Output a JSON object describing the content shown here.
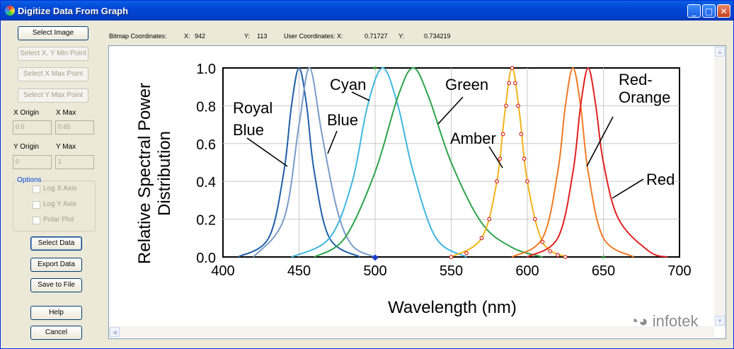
{
  "window": {
    "title": "Digitize Data From Graph",
    "min_glyph": "_",
    "max_glyph": "□",
    "close_glyph": "✕"
  },
  "left_panel": {
    "select_image": "Select Image",
    "select_xy_min": "Select X, Y Min Point",
    "select_x_max": "Select X Max Point",
    "select_y_max": "Select Y Max Point",
    "x_origin_label": "X Origin",
    "x_max_label": "X Max",
    "x_origin_value": "0.5",
    "x_max_value": "0.65",
    "y_origin_label": "Y Origin",
    "y_max_label": "Y Max",
    "y_origin_value": "0",
    "y_max_value": "1",
    "options_title": "Options",
    "log_x": "Log X Axis",
    "log_y": "Log Y Axis",
    "polar": "Polar Plot",
    "select_data": "Select Data",
    "export_data": "Export Data",
    "save_to_file": "Save to File",
    "help": "Help",
    "cancel": "Cancel"
  },
  "coords": {
    "bitmap_label": "Bitmap Coordinates:",
    "x_label": "X:",
    "x_value": "942",
    "y_label": "Y:",
    "y_value": "113",
    "user_label": "User Coordinates: X:",
    "ux_value": "0.71727",
    "uy_label": "Y:",
    "uy_value": "0.734219"
  },
  "watermark": "infotek",
  "chart_data": {
    "type": "line",
    "ylabel": "Relative Spectral Power Distribution",
    "ylabel_lines": [
      "Relative Spectral Power",
      "Distribution"
    ],
    "xlabel": "Wavelength (nm)",
    "xlim": [
      400,
      700
    ],
    "ylim": [
      0,
      1
    ],
    "x_ticks": [
      "400",
      "450",
      "500",
      "550",
      "600",
      "650",
      "700"
    ],
    "y_ticks": [
      "0.0",
      "0.2",
      "0.4",
      "0.6",
      "0.8",
      "1.0"
    ],
    "grid": true,
    "series": [
      {
        "name": "Royal Blue",
        "label_lines": [
          "Royal",
          "Blue"
        ],
        "peak": 450,
        "color": "#1f5ea8",
        "x": [
          410,
          430,
          440,
          445,
          450,
          455,
          460,
          470,
          490
        ],
        "y": [
          0.0,
          0.1,
          0.45,
          0.8,
          1.0,
          0.8,
          0.45,
          0.1,
          0.0
        ]
      },
      {
        "name": "Blue",
        "label_lines": [
          "Blue"
        ],
        "peak": 457,
        "color": "#7a9cc8",
        "x": [
          420,
          440,
          450,
          457,
          465,
          475,
          485,
          500
        ],
        "y": [
          0.0,
          0.2,
          0.7,
          1.0,
          0.65,
          0.25,
          0.06,
          0.0
        ]
      },
      {
        "name": "Cyan",
        "label_lines": [
          "Cyan"
        ],
        "peak": 505,
        "color": "#3fb6e0",
        "x": [
          445,
          470,
          485,
          495,
          505,
          515,
          525,
          540,
          560
        ],
        "y": [
          0.0,
          0.1,
          0.4,
          0.8,
          1.0,
          0.8,
          0.45,
          0.1,
          0.0
        ]
      },
      {
        "name": "Green",
        "label_lines": [
          "Green"
        ],
        "peak": 525,
        "color": "#2ca34a",
        "x": [
          460,
          480,
          500,
          515,
          525,
          535,
          550,
          570,
          590,
          610
        ],
        "y": [
          0.0,
          0.1,
          0.45,
          0.85,
          1.0,
          0.85,
          0.5,
          0.18,
          0.05,
          0.0
        ]
      },
      {
        "name": "Amber",
        "label_lines": [
          "Amber"
        ],
        "peak": 590,
        "color": "#f2b41a",
        "x": [
          550,
          570,
          580,
          585,
          590,
          595,
          600,
          610,
          625
        ],
        "y": [
          0.0,
          0.1,
          0.4,
          0.75,
          1.0,
          0.75,
          0.4,
          0.08,
          0.0
        ]
      },
      {
        "name": "Red-Orange",
        "label_lines": [
          "Red-",
          "Orange"
        ],
        "peak": 630,
        "color": "#f07a24",
        "x": [
          590,
          610,
          620,
          625,
          630,
          635,
          640,
          650,
          670
        ],
        "y": [
          0.0,
          0.1,
          0.45,
          0.8,
          1.0,
          0.8,
          0.45,
          0.1,
          0.0
        ]
      },
      {
        "name": "Red",
        "label_lines": [
          "Red"
        ],
        "peak": 640,
        "color": "#e02020",
        "x": [
          600,
          620,
          630,
          635,
          640,
          645,
          650,
          660,
          680,
          692
        ],
        "y": [
          0.0,
          0.1,
          0.45,
          0.8,
          1.0,
          0.8,
          0.5,
          0.2,
          0.03,
          0.0
        ]
      }
    ],
    "digitized_points": {
      "x": [
        550,
        560,
        570,
        575,
        580,
        582,
        584,
        586,
        588,
        590,
        592,
        594,
        596,
        598,
        600,
        605,
        610,
        615,
        620,
        625
      ],
      "y": [
        0.0,
        0.02,
        0.1,
        0.2,
        0.4,
        0.52,
        0.65,
        0.8,
        0.92,
        1.0,
        0.92,
        0.8,
        0.65,
        0.52,
        0.4,
        0.2,
        0.08,
        0.03,
        0.01,
        0.0
      ]
    }
  }
}
